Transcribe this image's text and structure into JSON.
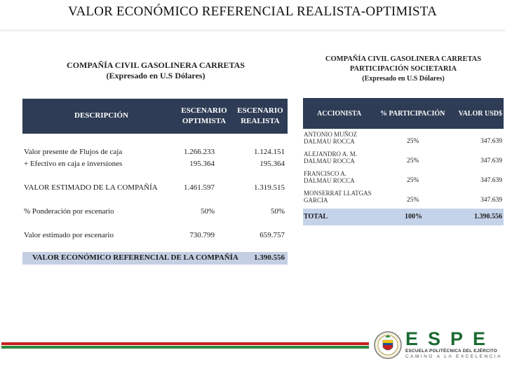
{
  "title": "VALOR ECONÓMICO REFERENCIAL REALISTA-OPTIMISTA",
  "left_table": {
    "company": "COMPAÑÍA CIVIL GASOLINERA CARRETAS",
    "subtitle": "(Expresado en U.S Dólares)",
    "headers": {
      "description": "DESCRIPCIÓN",
      "col1": "ESCENARIO OPTIMISTA",
      "col2": "ESCENARIO REALISTA"
    },
    "rows": [
      {
        "label": "Valor presente de Flujos de caja",
        "optimista": "1.266.233",
        "realista": "1.124.151"
      },
      {
        "label": "+ Efectivo en caja e inversiones",
        "optimista": "195.364",
        "realista": "195.364"
      },
      {
        "label": "VALOR ESTIMADO DE LA COMPAÑÍA",
        "optimista": "1.461.597",
        "realista": "1.319.515"
      },
      {
        "label": "% Ponderación por escenario",
        "optimista": "50%",
        "realista": "50%"
      },
      {
        "label": "Valor estimado por escenario",
        "optimista": "730.799",
        "realista": "659.757"
      }
    ],
    "total_label": "VALOR ECONÓMICO REFERENCIAL DE LA COMPAÑÍA",
    "total_value": "1.390.556"
  },
  "right_table": {
    "company": "COMPAÑÍA CIVIL GASOLINERA CARRETAS",
    "subtitle1": "PARTICIPACIÓN SOCIETARIA",
    "subtitle2": "(Expresado en U.S Dólares)",
    "headers": {
      "accionista": "ACCIONISTA",
      "participacion": "% PARTICIPACIÓN",
      "valor": "VALOR USD$"
    },
    "rows": [
      {
        "name": "ANTONIO MUÑOZ DALMAU ROCCA",
        "pct": "25%",
        "value": "347.639"
      },
      {
        "name": "ALEJANDRO A. M. DALMAU ROCCA",
        "pct": "25%",
        "value": "347.639"
      },
      {
        "name": "FRANCISCO A. DALMAU ROCCA",
        "pct": "25%",
        "value": "347.639"
      },
      {
        "name": "MONSERRAT LLATGAS GARCIA",
        "pct": "25%",
        "value": "347.639"
      }
    ],
    "total": {
      "label": "TOTAL",
      "pct": "100%",
      "value": "1.390.556"
    }
  },
  "footer": {
    "logo_text": "ESPE",
    "logo_line1": "ESCUELA POLITÉCNICA DEL EJÉRCITO",
    "logo_line2": "CAMINO A LA EXCELENCIA",
    "colors": {
      "red": "#c81e1e",
      "green": "#2e8a3a",
      "navy": "#2e3c55"
    }
  }
}
